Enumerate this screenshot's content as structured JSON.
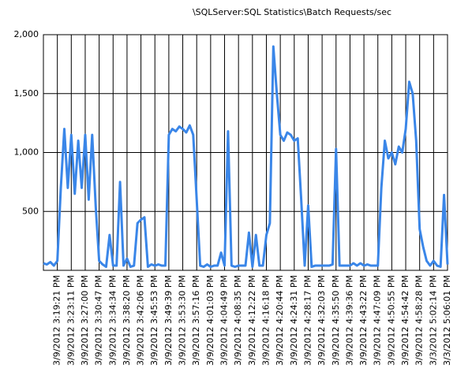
{
  "chart_data": {
    "type": "line",
    "title": "\\SQLServer:SQL Statistics\\Batch Requests/sec",
    "categories": [
      null,
      null,
      null,
      null,
      "3/9/2012 3:19:21 PM",
      null,
      null,
      null,
      "3/9/2012 3:23:11 PM",
      null,
      null,
      null,
      "3/9/2012 3:27:00 PM",
      null,
      null,
      null,
      "3/9/2012 3:30:47 PM",
      null,
      null,
      null,
      "3/9/2012 3:34:34 PM",
      null,
      null,
      null,
      "3/9/2012 3:38:20 PM",
      null,
      null,
      null,
      "3/9/2012 3:42:06 PM",
      null,
      null,
      null,
      "3/9/2012 3:45:53 PM",
      null,
      null,
      null,
      "3/9/2012 3:49:39 PM",
      null,
      null,
      null,
      "3/9/2012 3:53:30 PM",
      null,
      null,
      null,
      "3/9/2012 3:57:16 PM",
      null,
      null,
      null,
      "3/9/2012 4:01:03 PM",
      null,
      null,
      null,
      "3/9/2012 4:04:49 PM",
      null,
      null,
      null,
      "3/9/2012 4:08:35 PM",
      null,
      null,
      null,
      "3/9/2012 4:12:22 PM",
      null,
      null,
      null,
      "3/9/2012 4:16:18 PM",
      null,
      null,
      null,
      "3/9/2012 4:20:44 PM",
      null,
      null,
      null,
      "3/9/2012 4:24:31 PM",
      null,
      null,
      null,
      "3/9/2012 4:28:17 PM",
      null,
      null,
      null,
      "3/9/2012 4:32:03 PM",
      null,
      null,
      null,
      "3/9/2012 4:35:50 PM",
      null,
      null,
      null,
      "3/9/2012 4:39:36 PM",
      null,
      null,
      null,
      "3/9/2012 4:43:22 PM",
      null,
      null,
      null,
      "3/9/2012 4:47:09 PM",
      null,
      null,
      null,
      "3/9/2012 4:50:55 PM",
      null,
      null,
      null,
      "3/9/2012 4:54:42 PM",
      null,
      null,
      null,
      "3/9/2012 4:58:28 PM",
      null,
      null,
      null,
      "3/3/2012 5:02:14 PM",
      null,
      null,
      null,
      "3/3/2012 5:06:01 PM"
    ],
    "series": [
      {
        "name": "Batch Requests/sec",
        "color": "#3a86e8",
        "values": [
          60,
          50,
          70,
          40,
          80,
          700,
          1200,
          700,
          1150,
          650,
          1100,
          700,
          1150,
          600,
          1150,
          550,
          80,
          50,
          30,
          300,
          40,
          40,
          750,
          40,
          100,
          30,
          40,
          400,
          430,
          450,
          30,
          50,
          40,
          50,
          40,
          40,
          1150,
          1200,
          1180,
          1220,
          1200,
          1170,
          1230,
          1150,
          600,
          40,
          30,
          50,
          30,
          40,
          40,
          150,
          40,
          1180,
          40,
          30,
          40,
          40,
          40,
          320,
          30,
          300,
          40,
          40,
          300,
          400,
          1900,
          1500,
          1150,
          1100,
          1170,
          1150,
          1100,
          1120,
          600,
          40,
          550,
          30,
          40,
          40,
          40,
          40,
          40,
          50,
          1030,
          40,
          40,
          40,
          40,
          60,
          40,
          60,
          40,
          50,
          40,
          40,
          40,
          700,
          1100,
          950,
          1000,
          900,
          1050,
          1000,
          1200,
          1600,
          1500,
          1100,
          350,
          200,
          80,
          40,
          80,
          40,
          30,
          640,
          50
        ]
      }
    ],
    "ylim": [
      0,
      2000
    ],
    "yticks": [
      500,
      {
        "value": 1000,
        "label": "1,000"
      },
      {
        "value": 1500,
        "label": "1,500"
      },
      {
        "value": 2000,
        "label": "2,000"
      }
    ],
    "grid": true
  }
}
